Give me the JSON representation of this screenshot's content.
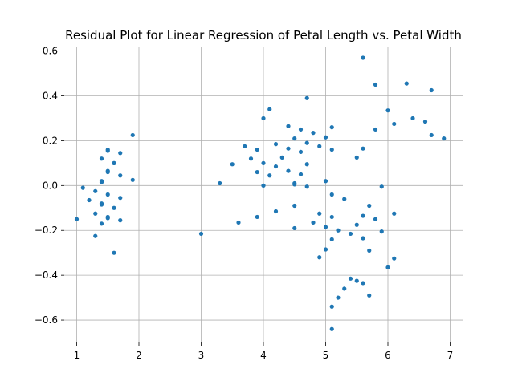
{
  "chart_data": {
    "type": "scatter",
    "title": "Residual Plot for Linear Regression of Petal Length vs. Petal Width",
    "xlabel": "",
    "ylabel": "",
    "xlim": [
      0.8,
      7.2
    ],
    "ylim": [
      -0.7,
      0.62
    ],
    "xticks": [
      1,
      2,
      3,
      4,
      5,
      6,
      7
    ],
    "xtick_labels": [
      "1",
      "2",
      "3",
      "4",
      "5",
      "6",
      "7"
    ],
    "yticks": [
      -0.6,
      -0.4,
      -0.2,
      0.0,
      0.2,
      0.4,
      0.6
    ],
    "ytick_labels": [
      "−0.6",
      "−0.4",
      "−0.2",
      "0.0",
      "0.2",
      "0.4",
      "0.6"
    ],
    "grid": true,
    "color": "#1f77b4",
    "points": [
      [
        1.0,
        -0.15
      ],
      [
        1.1,
        -0.01
      ],
      [
        1.2,
        -0.065
      ],
      [
        1.3,
        -0.025
      ],
      [
        1.3,
        -0.125
      ],
      [
        1.3,
        -0.225
      ],
      [
        1.4,
        0.12
      ],
      [
        1.4,
        0.02
      ],
      [
        1.4,
        0.015
      ],
      [
        1.4,
        -0.08
      ],
      [
        1.4,
        -0.085
      ],
      [
        1.4,
        -0.17
      ],
      [
        1.5,
        0.16
      ],
      [
        1.5,
        0.155
      ],
      [
        1.5,
        0.065
      ],
      [
        1.5,
        0.06
      ],
      [
        1.5,
        -0.04
      ],
      [
        1.5,
        -0.14
      ],
      [
        1.5,
        -0.145
      ],
      [
        1.6,
        0.1
      ],
      [
        1.6,
        0.1
      ],
      [
        1.6,
        -0.1
      ],
      [
        1.6,
        -0.3
      ],
      [
        1.7,
        0.145
      ],
      [
        1.7,
        0.045
      ],
      [
        1.7,
        -0.055
      ],
      [
        1.7,
        -0.155
      ],
      [
        1.9,
        0.225
      ],
      [
        1.9,
        0.025
      ],
      [
        3.0,
        -0.215
      ],
      [
        3.3,
        0.01
      ],
      [
        3.5,
        0.095
      ],
      [
        3.6,
        -0.165
      ],
      [
        3.7,
        0.175
      ],
      [
        3.8,
        0.12
      ],
      [
        3.9,
        0.16
      ],
      [
        3.9,
        0.06
      ],
      [
        3.9,
        -0.14
      ],
      [
        4.0,
        0.3
      ],
      [
        4.0,
        0.1
      ],
      [
        4.0,
        0.0
      ],
      [
        4.0,
        0.0
      ],
      [
        4.1,
        0.34
      ],
      [
        4.1,
        0.045
      ],
      [
        4.2,
        0.185
      ],
      [
        4.2,
        0.085
      ],
      [
        4.2,
        -0.115
      ],
      [
        4.3,
        0.125
      ],
      [
        4.4,
        0.265
      ],
      [
        4.4,
        0.165
      ],
      [
        4.4,
        0.065
      ],
      [
        4.5,
        0.21
      ],
      [
        4.5,
        0.01
      ],
      [
        4.5,
        0.005
      ],
      [
        4.5,
        -0.09
      ],
      [
        4.5,
        -0.19
      ],
      [
        4.6,
        0.25
      ],
      [
        4.6,
        0.15
      ],
      [
        4.6,
        0.05
      ],
      [
        4.7,
        0.39
      ],
      [
        4.7,
        0.19
      ],
      [
        4.7,
        0.095
      ],
      [
        4.7,
        -0.005
      ],
      [
        4.8,
        0.235
      ],
      [
        4.8,
        -0.165
      ],
      [
        4.9,
        0.175
      ],
      [
        4.9,
        -0.125
      ],
      [
        4.9,
        -0.32
      ],
      [
        5.0,
        0.215
      ],
      [
        5.0,
        0.02
      ],
      [
        5.0,
        -0.185
      ],
      [
        5.0,
        -0.285
      ],
      [
        5.1,
        0.26
      ],
      [
        5.1,
        0.16
      ],
      [
        5.1,
        -0.04
      ],
      [
        5.1,
        -0.14
      ],
      [
        5.1,
        -0.24
      ],
      [
        5.1,
        -0.54
      ],
      [
        5.1,
        -0.64
      ],
      [
        5.2,
        -0.2
      ],
      [
        5.2,
        -0.5
      ],
      [
        5.3,
        -0.06
      ],
      [
        5.3,
        -0.46
      ],
      [
        5.4,
        -0.215
      ],
      [
        5.4,
        -0.415
      ],
      [
        5.5,
        0.125
      ],
      [
        5.5,
        -0.175
      ],
      [
        5.5,
        -0.425
      ],
      [
        5.6,
        0.57
      ],
      [
        5.6,
        0.165
      ],
      [
        5.6,
        -0.135
      ],
      [
        5.6,
        -0.235
      ],
      [
        5.6,
        -0.435
      ],
      [
        5.7,
        -0.09
      ],
      [
        5.7,
        -0.29
      ],
      [
        5.7,
        -0.49
      ],
      [
        5.8,
        0.45
      ],
      [
        5.8,
        0.25
      ],
      [
        5.8,
        -0.15
      ],
      [
        5.9,
        -0.005
      ],
      [
        5.9,
        -0.205
      ],
      [
        6.0,
        0.335
      ],
      [
        6.0,
        -0.365
      ],
      [
        6.1,
        0.275
      ],
      [
        6.1,
        -0.125
      ],
      [
        6.1,
        -0.325
      ],
      [
        6.3,
        0.455
      ],
      [
        6.4,
        0.3
      ],
      [
        6.6,
        0.285
      ],
      [
        6.7,
        0.425
      ],
      [
        6.7,
        0.225
      ],
      [
        6.9,
        0.21
      ]
    ]
  }
}
